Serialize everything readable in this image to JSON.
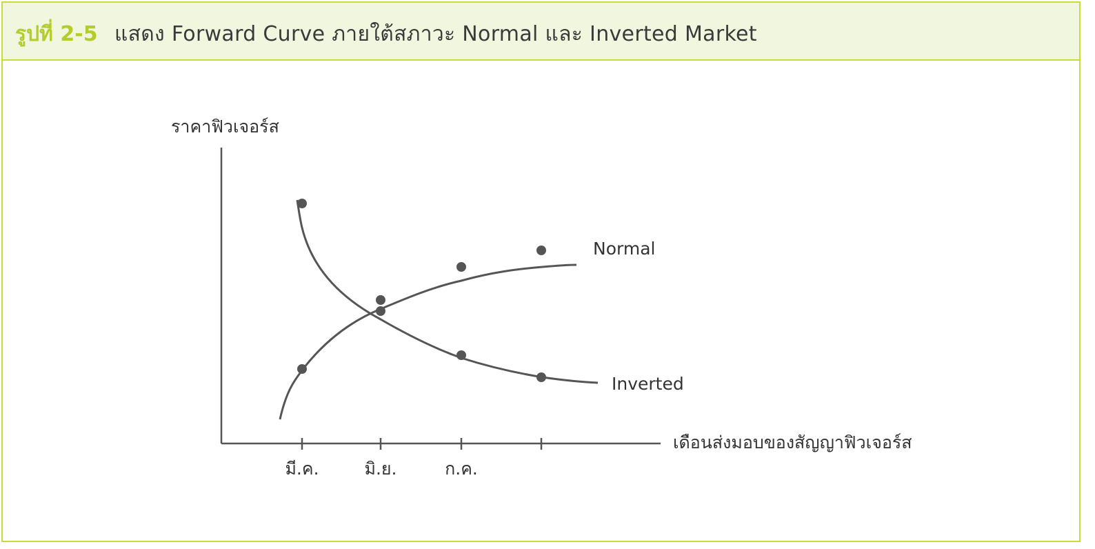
{
  "figure": {
    "number": "รูปที่ 2-5",
    "title": "แสดง Forward Curve ภายใต้สภาวะ Normal และ Inverted Market"
  },
  "colors": {
    "accent": "#c8dc3c",
    "figure_number": "#b5cc2a",
    "header_bg": "#f1f6df",
    "curve": "#555555",
    "axis": "#555555"
  },
  "chart_data": {
    "type": "line",
    "ylabel": "ราคาฟิวเจอร์ส",
    "xlabel": "เดือนส่งมอบของสัญญาฟิวเจอร์ส",
    "categories": [
      "มี.ค.",
      "มิ.ย.",
      "ก.ค.",
      ""
    ],
    "grid": false,
    "y_ticks_shown": false,
    "series": [
      {
        "name": "Normal",
        "values": [
          0.27,
          0.52,
          0.64,
          0.7
        ]
      },
      {
        "name": "Inverted",
        "values": [
          0.87,
          0.48,
          0.32,
          0.24
        ]
      }
    ]
  }
}
